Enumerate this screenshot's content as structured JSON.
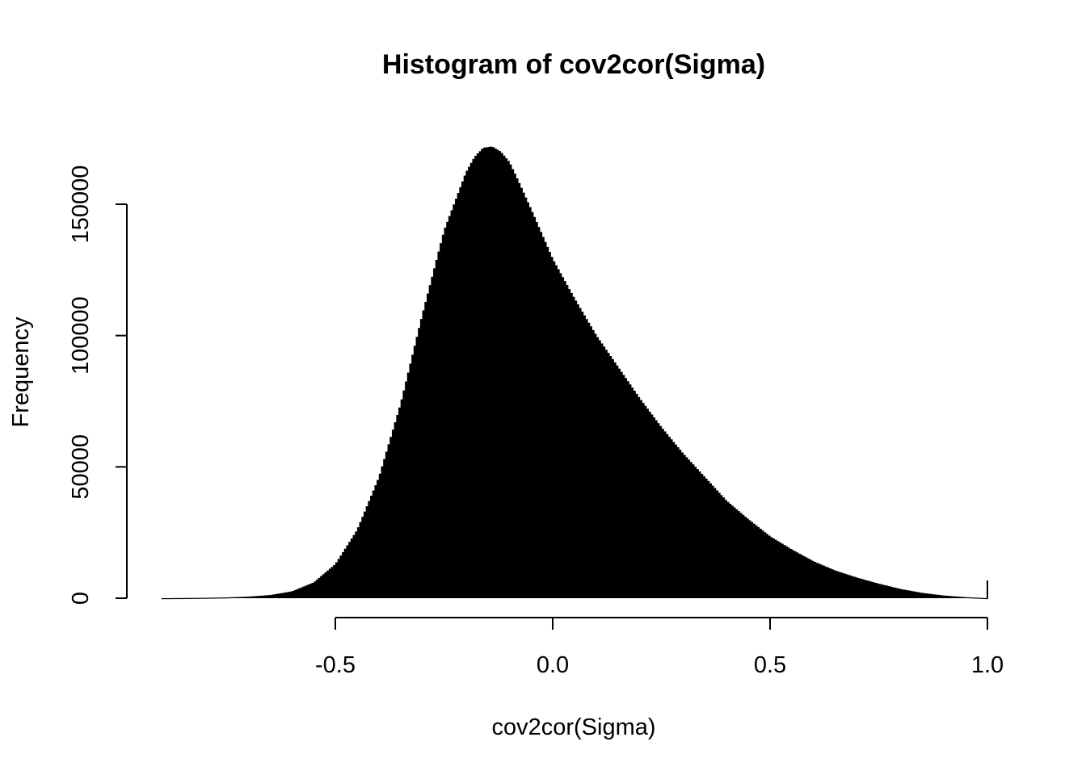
{
  "chart_data": {
    "type": "bar",
    "title": "Histogram of cov2cor(Sigma)",
    "xlabel": "cov2cor(Sigma)",
    "ylabel": "Frequency",
    "xlim": [
      -0.96,
      1.0
    ],
    "ylim": [
      0,
      172000
    ],
    "x_ticks": [
      "-0.5",
      "0.0",
      "0.5",
      "1.0"
    ],
    "y_ticks": [
      "0",
      "50000",
      "100000",
      "150000"
    ],
    "bar_color": "#000000",
    "grid": false,
    "x": [
      -0.9,
      -0.85,
      -0.8,
      -0.75,
      -0.7,
      -0.65,
      -0.6,
      -0.55,
      -0.5,
      -0.45,
      -0.4,
      -0.35,
      -0.3,
      -0.25,
      -0.2,
      -0.18,
      -0.16,
      -0.14,
      -0.12,
      -0.1,
      -0.08,
      -0.05,
      0.0,
      0.05,
      0.1,
      0.15,
      0.2,
      0.25,
      0.3,
      0.35,
      0.4,
      0.45,
      0.5,
      0.55,
      0.6,
      0.65,
      0.7,
      0.75,
      0.8,
      0.85,
      0.9,
      0.95,
      1.0
    ],
    "values": [
      0,
      50,
      150,
      300,
      600,
      1200,
      2600,
      6000,
      13000,
      26000,
      46000,
      74000,
      108000,
      140000,
      162000,
      168000,
      171500,
      172000,
      170000,
      166000,
      159000,
      148000,
      129000,
      114000,
      100000,
      88000,
      76000,
      65000,
      55000,
      46000,
      37000,
      30000,
      23500,
      18500,
      14000,
      10500,
      7800,
      5500,
      3500,
      2000,
      1000,
      400,
      0
    ]
  }
}
